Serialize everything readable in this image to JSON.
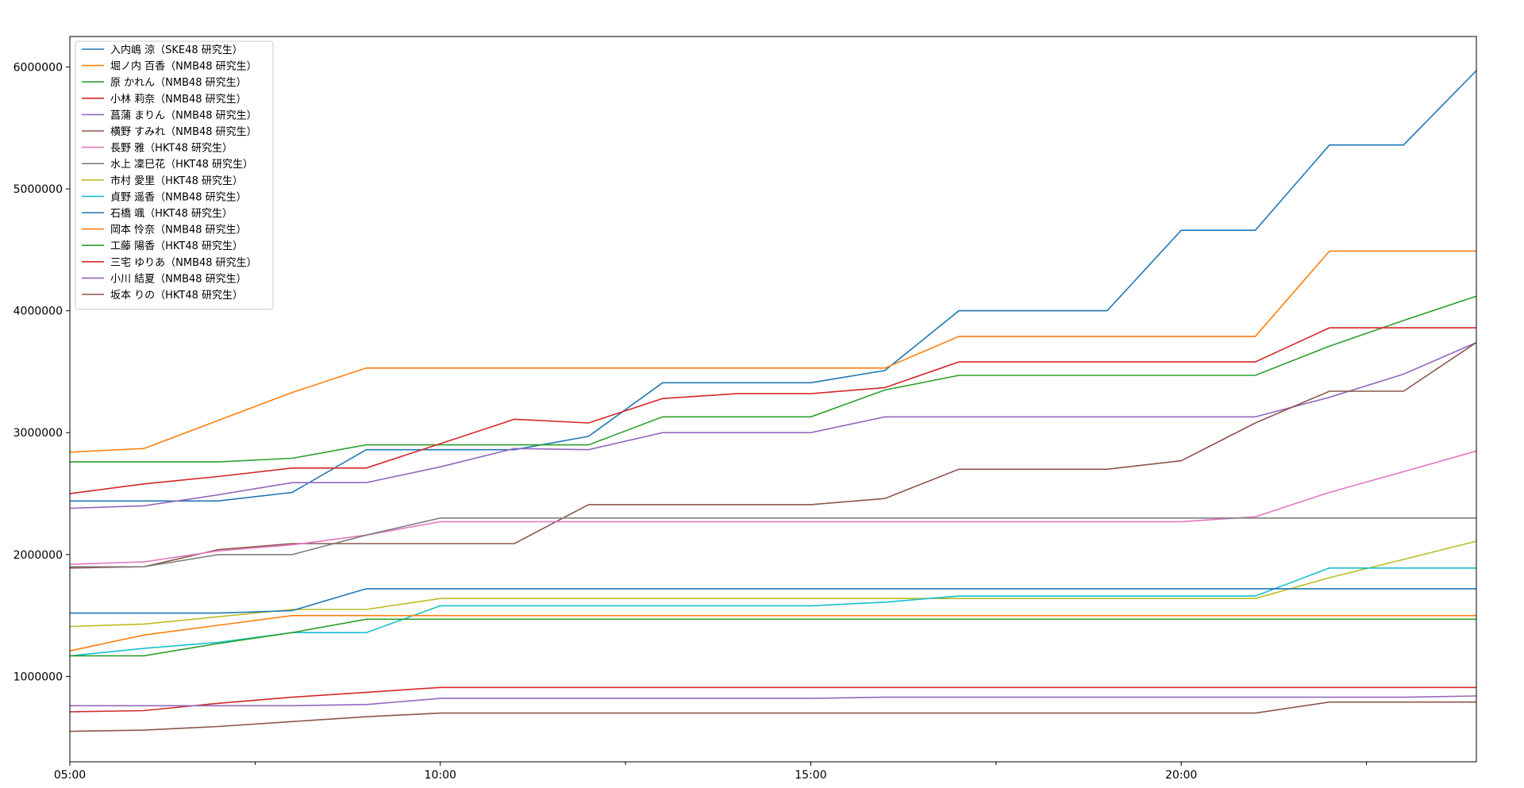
{
  "chart_data": {
    "type": "line",
    "x": [
      "05:00",
      "06:00",
      "07:00",
      "08:00",
      "09:00",
      "10:00",
      "11:00",
      "12:00",
      "13:00",
      "14:00",
      "15:00",
      "16:00",
      "17:00",
      "18:00",
      "19:00",
      "20:00",
      "21:00",
      "22:00",
      "23:00",
      "23:59"
    ],
    "xticks": [
      "05:00",
      "10:00",
      "15:00",
      "20:00"
    ],
    "yticks": [
      "1000000",
      "2000000",
      "3000000",
      "4000000",
      "5000000",
      "6000000"
    ],
    "ylim": [
      300000,
      6250000
    ],
    "legend_position": "upper left",
    "grid": false,
    "series": [
      {
        "name": "入内嶋 涼（SKE48 研究生）",
        "color": "#1f77b4",
        "values": [
          2440000,
          2440000,
          2440000,
          2510000,
          2860000,
          2860000,
          2860000,
          2970000,
          3410000,
          3410000,
          3410000,
          3510000,
          4000000,
          4000000,
          4000000,
          4660000,
          4660000,
          5360000,
          5360000,
          5970000
        ]
      },
      {
        "name": "堀ノ内 百香（NMB48 研究生）",
        "color": "#ff7f0e",
        "values": [
          2840000,
          2870000,
          3100000,
          3330000,
          3530000,
          3530000,
          3530000,
          3530000,
          3530000,
          3530000,
          3530000,
          3530000,
          3790000,
          3790000,
          3790000,
          3790000,
          3790000,
          4490000,
          4490000,
          4490000
        ]
      },
      {
        "name": "原 かれん（NMB48 研究生）",
        "color": "#2ca02c",
        "values": [
          2760000,
          2760000,
          2760000,
          2790000,
          2900000,
          2900000,
          2900000,
          2900000,
          3130000,
          3130000,
          3130000,
          3350000,
          3470000,
          3470000,
          3470000,
          3470000,
          3470000,
          3710000,
          3920000,
          4120000
        ]
      },
      {
        "name": "小林 莉奈（NMB48 研究生）",
        "color": "#d62728",
        "values": [
          2500000,
          2580000,
          2640000,
          2710000,
          2710000,
          2910000,
          3110000,
          3080000,
          3280000,
          3320000,
          3320000,
          3370000,
          3580000,
          3580000,
          3580000,
          3580000,
          3580000,
          3860000,
          3860000,
          3860000
        ]
      },
      {
        "name": "菖蒲 まりん（NMB48 研究生）",
        "color": "#9467bd",
        "values": [
          2380000,
          2400000,
          2490000,
          2590000,
          2590000,
          2720000,
          2870000,
          2860000,
          3000000,
          3000000,
          3000000,
          3130000,
          3130000,
          3130000,
          3130000,
          3130000,
          3130000,
          3290000,
          3480000,
          3740000
        ]
      },
      {
        "name": "横野 すみれ（NMB48 研究生）",
        "color": "#8c564b",
        "values": [
          1890000,
          1900000,
          2040000,
          2090000,
          2090000,
          2090000,
          2090000,
          2410000,
          2410000,
          2410000,
          2410000,
          2460000,
          2700000,
          2700000,
          2700000,
          2770000,
          3080000,
          3340000,
          3340000,
          3740000
        ]
      },
      {
        "name": "長野 雅（HKT48 研究生）",
        "color": "#e377c2",
        "values": [
          1920000,
          1940000,
          2030000,
          2080000,
          2160000,
          2270000,
          2270000,
          2270000,
          2270000,
          2270000,
          2270000,
          2270000,
          2270000,
          2270000,
          2270000,
          2270000,
          2310000,
          2510000,
          2680000,
          2850000
        ]
      },
      {
        "name": "水上 凜巳花（HKT48 研究生）",
        "color": "#7f7f7f",
        "values": [
          1900000,
          1900000,
          2000000,
          2000000,
          2160000,
          2300000,
          2300000,
          2300000,
          2300000,
          2300000,
          2300000,
          2300000,
          2300000,
          2300000,
          2300000,
          2300000,
          2300000,
          2300000,
          2300000,
          2300000
        ]
      },
      {
        "name": "市村 愛里（HKT48 研究生）",
        "color": "#bcbd22",
        "values": [
          1410000,
          1430000,
          1490000,
          1550000,
          1550000,
          1640000,
          1640000,
          1640000,
          1640000,
          1640000,
          1640000,
          1640000,
          1640000,
          1640000,
          1640000,
          1640000,
          1640000,
          1810000,
          1960000,
          2110000
        ]
      },
      {
        "name": "貞野 遥香（NMB48 研究生）",
        "color": "#17becf",
        "values": [
          1170000,
          1230000,
          1280000,
          1360000,
          1360000,
          1580000,
          1580000,
          1580000,
          1580000,
          1580000,
          1580000,
          1610000,
          1660000,
          1660000,
          1660000,
          1660000,
          1660000,
          1890000,
          1890000,
          1890000
        ]
      },
      {
        "name": "石橋 颯（HKT48 研究生）",
        "color": "#1f77b4",
        "values": [
          1520000,
          1520000,
          1520000,
          1540000,
          1720000,
          1720000,
          1720000,
          1720000,
          1720000,
          1720000,
          1720000,
          1720000,
          1720000,
          1720000,
          1720000,
          1720000,
          1720000,
          1720000,
          1720000,
          1720000
        ]
      },
      {
        "name": "岡本 怜奈（NMB48 研究生）",
        "color": "#ff7f0e",
        "values": [
          1210000,
          1340000,
          1420000,
          1500000,
          1500000,
          1500000,
          1500000,
          1500000,
          1500000,
          1500000,
          1500000,
          1500000,
          1500000,
          1500000,
          1500000,
          1500000,
          1500000,
          1500000,
          1500000,
          1500000
        ]
      },
      {
        "name": "工藤 陽香（HKT48 研究生）",
        "color": "#2ca02c",
        "values": [
          1170000,
          1170000,
          1270000,
          1360000,
          1470000,
          1470000,
          1470000,
          1470000,
          1470000,
          1470000,
          1470000,
          1470000,
          1470000,
          1470000,
          1470000,
          1470000,
          1470000,
          1470000,
          1470000,
          1470000
        ]
      },
      {
        "name": "三宅 ゆりあ（NMB48 研究生）",
        "color": "#d62728",
        "values": [
          710000,
          720000,
          780000,
          830000,
          870000,
          910000,
          910000,
          910000,
          910000,
          910000,
          910000,
          910000,
          910000,
          910000,
          910000,
          910000,
          910000,
          910000,
          910000,
          910000
        ]
      },
      {
        "name": "小川 結夏（NMB48 研究生）",
        "color": "#9467bd",
        "values": [
          760000,
          760000,
          760000,
          760000,
          770000,
          820000,
          820000,
          820000,
          820000,
          820000,
          820000,
          830000,
          830000,
          830000,
          830000,
          830000,
          830000,
          830000,
          830000,
          840000
        ]
      },
      {
        "name": "坂本 りの（HKT48 研究生）",
        "color": "#8c564b",
        "values": [
          550000,
          560000,
          590000,
          630000,
          670000,
          700000,
          700000,
          700000,
          700000,
          700000,
          700000,
          700000,
          700000,
          700000,
          700000,
          700000,
          700000,
          790000,
          790000,
          790000
        ]
      }
    ]
  }
}
